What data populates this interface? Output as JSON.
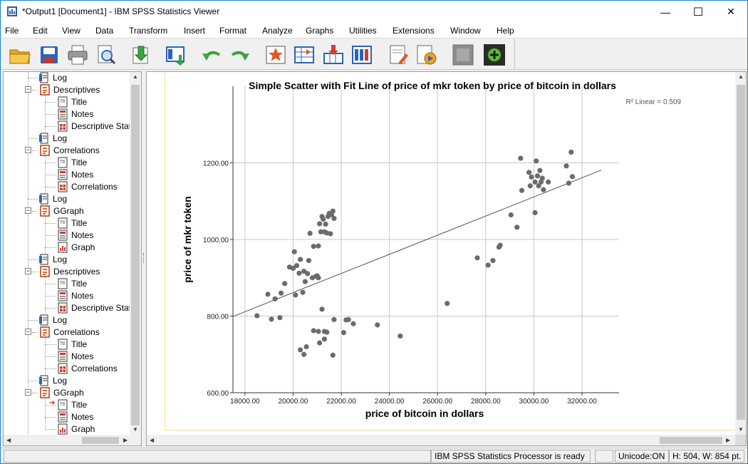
{
  "window": {
    "title": "*Output1 [Document1] - IBM SPSS Statistics Viewer",
    "minimize_glyph": "—",
    "maximize_glyph": "☐",
    "close_glyph": "✕"
  },
  "menu": [
    "File",
    "Edit",
    "View",
    "Data",
    "Transform",
    "Insert",
    "Format",
    "Analyze",
    "Graphs",
    "Utilities",
    "Extensions",
    "Window",
    "Help"
  ],
  "toolbar": {
    "buttons": [
      "open-icon",
      "save-icon",
      "print-icon",
      "print-preview-icon",
      "export-icon",
      "recall-dialog-icon",
      "undo-icon",
      "redo-icon",
      "goto-data-icon",
      "goto-case-icon",
      "goto-variable-icon",
      "variables-icon",
      "insert-output-icon",
      "designate-window-icon",
      "hide-icon",
      "show-icon"
    ]
  },
  "outline": {
    "items": [
      {
        "label": "Log",
        "level": 1,
        "icon": "log-icon"
      },
      {
        "label": "Descriptives",
        "level": 0,
        "icon": "procedure-icon",
        "expanded": true
      },
      {
        "label": "Title",
        "level": 1,
        "icon": "title-icon"
      },
      {
        "label": "Notes",
        "level": 1,
        "icon": "notes-icon"
      },
      {
        "label": "Descriptive Statistics",
        "level": 1,
        "icon": "table-icon"
      },
      {
        "label": "Log",
        "level": 1,
        "icon": "log-icon"
      },
      {
        "label": "Correlations",
        "level": 0,
        "icon": "procedure-icon",
        "expanded": true
      },
      {
        "label": "Title",
        "level": 1,
        "icon": "title-icon"
      },
      {
        "label": "Notes",
        "level": 1,
        "icon": "notes-icon"
      },
      {
        "label": "Correlations",
        "level": 1,
        "icon": "table-icon"
      },
      {
        "label": "Log",
        "level": 1,
        "icon": "log-icon"
      },
      {
        "label": "GGraph",
        "level": 0,
        "icon": "procedure-icon",
        "expanded": true
      },
      {
        "label": "Title",
        "level": 1,
        "icon": "title-icon"
      },
      {
        "label": "Notes",
        "level": 1,
        "icon": "notes-icon"
      },
      {
        "label": "Graph",
        "level": 1,
        "icon": "graph-icon"
      },
      {
        "label": "Log",
        "level": 1,
        "icon": "log-icon"
      },
      {
        "label": "Descriptives",
        "level": 0,
        "icon": "procedure-icon",
        "expanded": true
      },
      {
        "label": "Title",
        "level": 1,
        "icon": "title-icon"
      },
      {
        "label": "Notes",
        "level": 1,
        "icon": "notes-icon"
      },
      {
        "label": "Descriptive Statistics",
        "level": 1,
        "icon": "table-icon"
      },
      {
        "label": "Log",
        "level": 1,
        "icon": "log-icon"
      },
      {
        "label": "Correlations",
        "level": 0,
        "icon": "procedure-icon",
        "expanded": true
      },
      {
        "label": "Title",
        "level": 1,
        "icon": "title-icon"
      },
      {
        "label": "Notes",
        "level": 1,
        "icon": "notes-icon"
      },
      {
        "label": "Correlations",
        "level": 1,
        "icon": "table-icon"
      },
      {
        "label": "Log",
        "level": 1,
        "icon": "log-icon"
      },
      {
        "label": "GGraph",
        "level": 0,
        "icon": "procedure-icon",
        "expanded": true
      },
      {
        "label": "Title",
        "level": 1,
        "icon": "title-icon",
        "current": true
      },
      {
        "label": "Notes",
        "level": 1,
        "icon": "notes-icon"
      },
      {
        "label": "Graph",
        "level": 1,
        "icon": "graph-icon"
      }
    ]
  },
  "chart_data": {
    "type": "scatter",
    "title": "Simple Scatter with Fit Line of price of mkr token by price of bitcoin in dollars",
    "xlabel": "price of bitcoin in dollars",
    "ylabel": "price of mkr token",
    "xlim": [
      17500,
      32800
    ],
    "ylim": [
      600,
      1400
    ],
    "xticks": [
      "18000.00",
      "20000.00",
      "22000.00",
      "24000.00",
      "26000.00",
      "28000.00",
      "30000.00",
      "32000.00"
    ],
    "xtick_values": [
      18000,
      20000,
      22000,
      24000,
      26000,
      28000,
      30000,
      32000
    ],
    "yticks": [
      "600.00",
      "800.00",
      "1000.00",
      "1200.00"
    ],
    "ytick_values": [
      600,
      800,
      1000,
      1200
    ],
    "grid": true,
    "r2_annotation": "R² Linear = 0.509",
    "fit_line": {
      "x": [
        17500,
        32800
      ],
      "y": [
        799,
        1181
      ]
    },
    "point_color": "#6b6b6b",
    "points": [
      [
        18500,
        801
      ],
      [
        18950,
        857
      ],
      [
        19100,
        792
      ],
      [
        19250,
        845
      ],
      [
        19450,
        796
      ],
      [
        19500,
        860
      ],
      [
        19650,
        885
      ],
      [
        19850,
        928
      ],
      [
        20000,
        925
      ],
      [
        20050,
        968
      ],
      [
        20100,
        855
      ],
      [
        20150,
        932
      ],
      [
        20250,
        912
      ],
      [
        20300,
        948
      ],
      [
        20400,
        862
      ],
      [
        20450,
        917
      ],
      [
        20500,
        890
      ],
      [
        20600,
        911
      ],
      [
        20650,
        945
      ],
      [
        20700,
        1016
      ],
      [
        20800,
        900
      ],
      [
        20850,
        982
      ],
      [
        20950,
        904
      ],
      [
        21050,
        983
      ],
      [
        21100,
        1041
      ],
      [
        21150,
        1020
      ],
      [
        21200,
        1060
      ],
      [
        21250,
        1053
      ],
      [
        21300,
        1020
      ],
      [
        21350,
        1040
      ],
      [
        21400,
        1017
      ],
      [
        21450,
        1060
      ],
      [
        21500,
        1068
      ],
      [
        21550,
        1015
      ],
      [
        21600,
        1065
      ],
      [
        21650,
        1074
      ],
      [
        21700,
        1055
      ],
      [
        21000,
        905
      ],
      [
        21050,
        900
      ],
      [
        20300,
        712
      ],
      [
        20450,
        700
      ],
      [
        20550,
        720
      ],
      [
        20850,
        762
      ],
      [
        21100,
        730
      ],
      [
        21200,
        818
      ],
      [
        21300,
        740
      ],
      [
        21400,
        758
      ],
      [
        21650,
        698
      ],
      [
        21050,
        760
      ],
      [
        21300,
        760
      ],
      [
        21700,
        791
      ],
      [
        22100,
        757
      ],
      [
        22200,
        790
      ],
      [
        22300,
        791
      ],
      [
        22500,
        780
      ],
      [
        23500,
        777
      ],
      [
        24450,
        748
      ],
      [
        26400,
        833
      ],
      [
        27650,
        952
      ],
      [
        28100,
        933
      ],
      [
        28300,
        945
      ],
      [
        28550,
        980
      ],
      [
        28600,
        985
      ],
      [
        29050,
        1064
      ],
      [
        29300,
        1032
      ],
      [
        29450,
        1212
      ],
      [
        29500,
        1128
      ],
      [
        29800,
        1175
      ],
      [
        29850,
        1140
      ],
      [
        29900,
        1163
      ],
      [
        30050,
        1070
      ],
      [
        30050,
        1150
      ],
      [
        30100,
        1205
      ],
      [
        30150,
        1166
      ],
      [
        30200,
        1140
      ],
      [
        30250,
        1180
      ],
      [
        30300,
        1150
      ],
      [
        30350,
        1160
      ],
      [
        30400,
        1130
      ],
      [
        30600,
        1150
      ],
      [
        31350,
        1192
      ],
      [
        31450,
        1147
      ],
      [
        31550,
        1228
      ],
      [
        31600,
        1164
      ]
    ]
  },
  "status": {
    "processor": "IBM SPSS Statistics Processor is ready",
    "unicode": "Unicode:ON",
    "size": "H: 504, W: 854 pt."
  }
}
